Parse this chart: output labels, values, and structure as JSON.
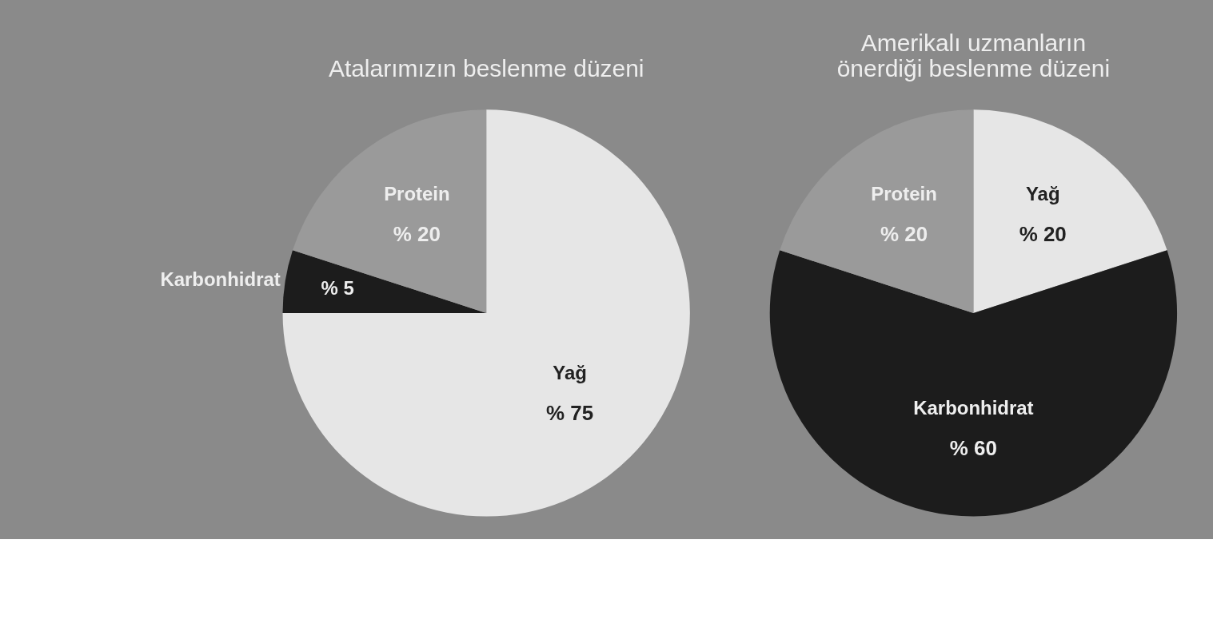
{
  "chart_data": [
    {
      "type": "pie",
      "title": "Atalarımızın beslenme düzeni",
      "categories": [
        "Yağ",
        "Karbonhidrat",
        "Protein"
      ],
      "values": [
        75,
        5,
        20
      ],
      "colors": [
        "#e6e6e6",
        "#1c1c1c",
        "#9a9a9a"
      ],
      "value_labels": [
        "% 75",
        "% 5",
        "% 20"
      ]
    },
    {
      "type": "pie",
      "title": [
        "Amerikalı uzmanların",
        "önerdiği beslenme düzeni"
      ],
      "categories": [
        "Yağ",
        "Karbonhidrat",
        "Protein"
      ],
      "values": [
        20,
        60,
        20
      ],
      "colors": [
        "#e6e6e6",
        "#1c1c1c",
        "#9a9a9a"
      ],
      "value_labels": [
        "% 20",
        "% 60",
        "% 20"
      ]
    }
  ]
}
